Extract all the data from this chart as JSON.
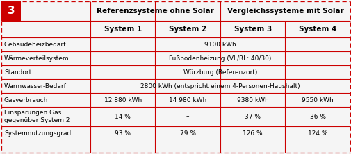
{
  "title_number": "3",
  "group_header1": "Referenzsysteme ohne Solar",
  "group_header2": "Vergleichssysteme mit Solar",
  "system_headers": [
    "System 1",
    "System 2",
    "System 3",
    "System 4"
  ],
  "rows": [
    {
      "label": "Gebäudeheizbedarf",
      "span": true,
      "values": [
        "9100 kWh"
      ]
    },
    {
      "label": "Wärmeverteilsystem",
      "span": true,
      "values": [
        "Fußbodenheizung (VL/RL: 40/30)"
      ]
    },
    {
      "label": "Standort",
      "span": true,
      "values": [
        "Würzburg (Referenzort)"
      ]
    },
    {
      "label": "Warmwasser-Bedarf",
      "span": true,
      "values": [
        "2800 kWh (entspricht einem 4-Personen-Haushalt)"
      ]
    },
    {
      "label": "Gasverbrauch",
      "span": false,
      "values": [
        "12 880 kWh",
        "14 980 kWh",
        "9380 kWh",
        "9550 kWh"
      ]
    },
    {
      "label": "Einsparungen Gas\ngegenüber System 2",
      "span": false,
      "values": [
        "14 %",
        "–",
        "37 %",
        "36 %"
      ]
    },
    {
      "label": "Systemnutzungsgrad",
      "span": false,
      "values": [
        "93 %",
        "79 %",
        "126 %",
        "124 %"
      ]
    }
  ],
  "red": "#cc0000",
  "white": "#ffffff",
  "black": "#000000",
  "bg": "#f5f5f5",
  "font_size": 6.5,
  "header_font_size": 7.5,
  "bold_font_size": 7.5
}
